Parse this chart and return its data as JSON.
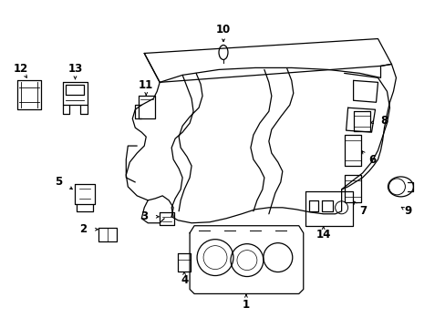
{
  "background_color": "#ffffff",
  "line_color": "#000000",
  "fig_width": 4.89,
  "fig_height": 3.6,
  "dpi": 100,
  "label_fontsize": 8.5,
  "lw": 0.9
}
